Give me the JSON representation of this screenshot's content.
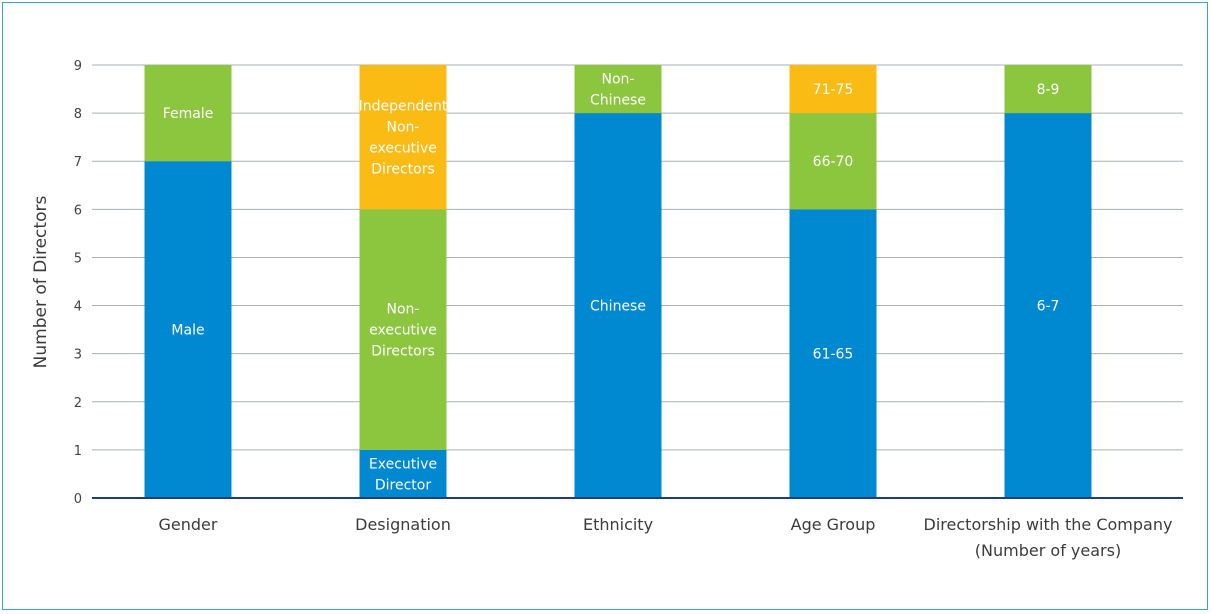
{
  "chart_data": {
    "type": "bar",
    "stacked": true,
    "title": "",
    "xlabel": "",
    "ylabel": "Number of Directors",
    "ylim": [
      0,
      9
    ],
    "yticks": [
      0,
      1,
      2,
      3,
      4,
      5,
      6,
      7,
      8,
      9
    ],
    "grid": true,
    "legend": "none",
    "colors": {
      "blue": "#0088d1",
      "green": "#8cc63f",
      "yellow": "#fbbb15",
      "axis": "#1f3f7a",
      "grid": "#aab0b5"
    },
    "categories": [
      {
        "label": [
          "Gender"
        ],
        "segments": [
          {
            "label": "Male",
            "value": 7,
            "color": "#0088d1"
          },
          {
            "label": "Female",
            "value": 2,
            "color": "#8cc63f"
          }
        ]
      },
      {
        "label": [
          "Designation"
        ],
        "segments": [
          {
            "label": "Executive Director",
            "value": 1,
            "color": "#0088d1"
          },
          {
            "label": "Non-executive Directors",
            "value": 5,
            "color": "#8cc63f"
          },
          {
            "label": "Independent Non-executive Directors",
            "value": 3,
            "color": "#fbbb15"
          }
        ]
      },
      {
        "label": [
          "Ethnicity"
        ],
        "segments": [
          {
            "label": "Chinese",
            "value": 8,
            "color": "#0088d1"
          },
          {
            "label": "Non-Chinese",
            "value": 1,
            "color": "#8cc63f"
          }
        ]
      },
      {
        "label": [
          "Age Group"
        ],
        "segments": [
          {
            "label": "61-65",
            "value": 6,
            "color": "#0088d1"
          },
          {
            "label": "66-70",
            "value": 2,
            "color": "#8cc63f"
          },
          {
            "label": "71-75",
            "value": 1,
            "color": "#fbbb15"
          }
        ]
      },
      {
        "label": [
          "Directorship with the Company",
          "(Number of years)"
        ],
        "segments": [
          {
            "label": "6-7",
            "value": 8,
            "color": "#0088d1"
          },
          {
            "label": "8-9",
            "value": 1,
            "color": "#8cc63f"
          }
        ]
      }
    ]
  }
}
